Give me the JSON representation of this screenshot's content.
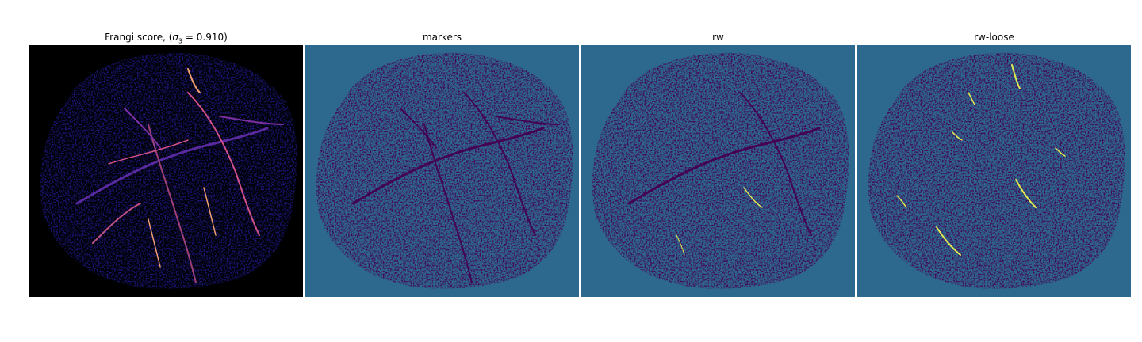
{
  "panels": [
    {
      "id": "frangi",
      "title": "Frangi score, (",
      "sym": "σ",
      "sub": "3",
      "eq": " = 0.910)",
      "colormap": "magma-like",
      "background": "#000000"
    },
    {
      "id": "markers",
      "title": "markers",
      "colormap": "viridis",
      "background": "#2d688e"
    },
    {
      "id": "rw",
      "title": "rw",
      "colormap": "viridis",
      "background": "#2d688e"
    },
    {
      "id": "rw-loose",
      "title": "rw-loose",
      "colormap": "viridis",
      "background": "#2d688e"
    }
  ],
  "colors": {
    "background_black": "#000000",
    "background_teal": "#2d688e",
    "tissue_purple": "#440154",
    "tissue_blue": "#1c1880",
    "vessel_orange": "#f0a070",
    "vessel_pink": "#d0508a",
    "highlight_yellow": "#e0ea4c"
  }
}
